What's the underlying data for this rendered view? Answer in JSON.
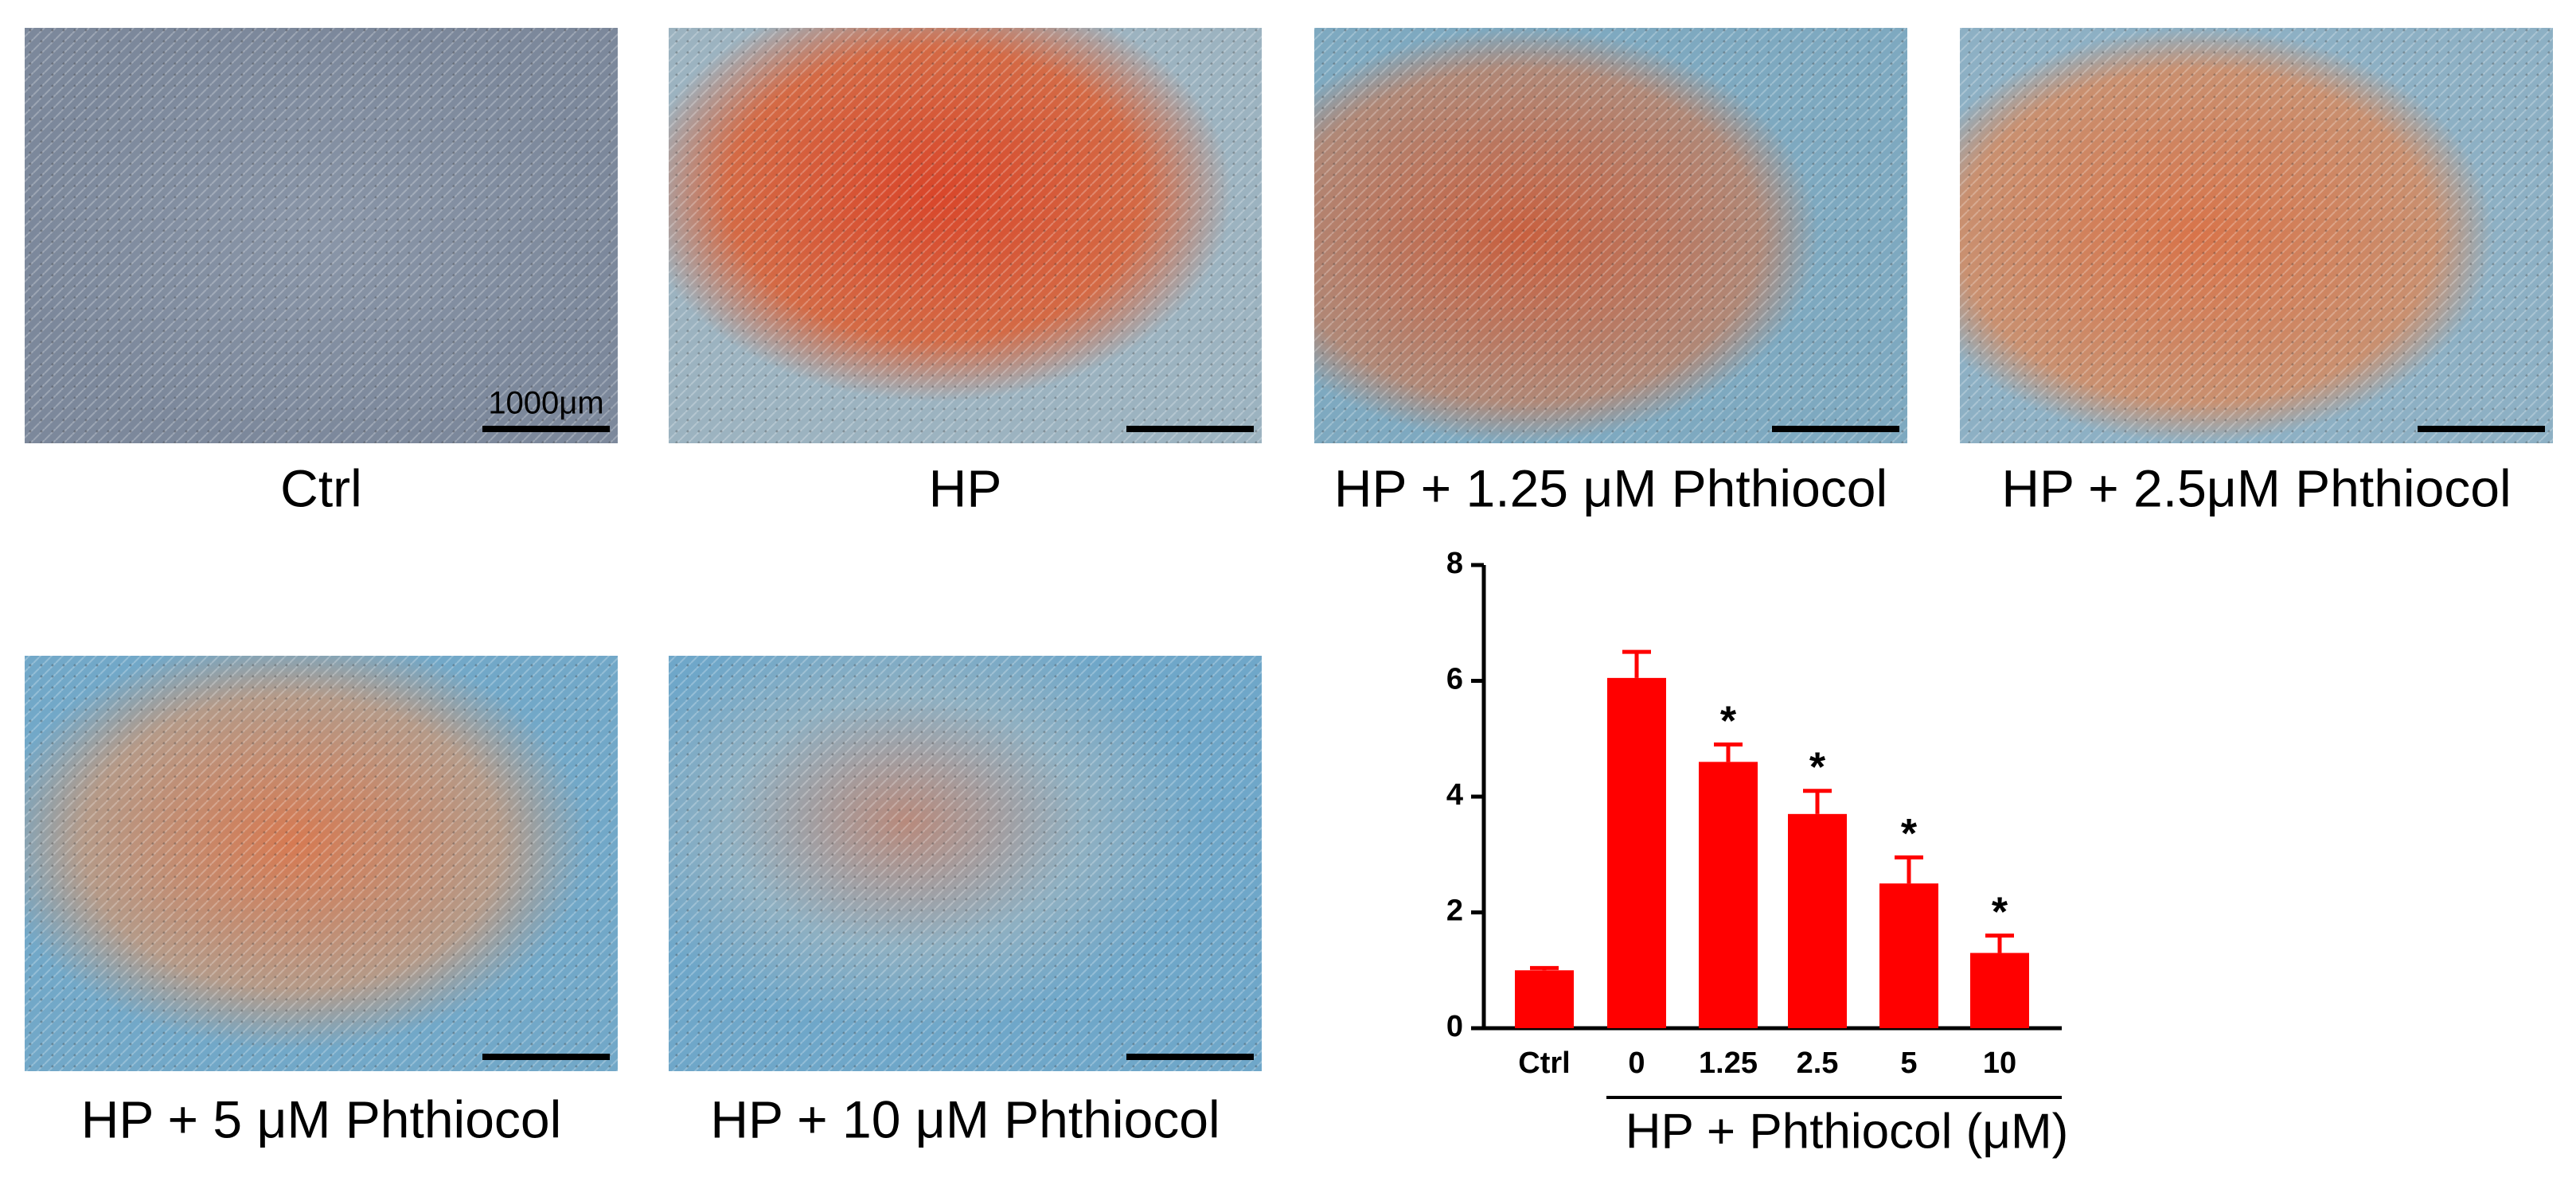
{
  "panels": [
    {
      "label": "Ctrl"
    },
    {
      "label": "HP"
    },
    {
      "label": "HP + 1.25 μM Phthiocol"
    },
    {
      "label": "HP + 2.5μM Phthiocol"
    },
    {
      "label": "HP + 5 μM Phthiocol"
    },
    {
      "label": "HP + 10 μM Phthiocol"
    }
  ],
  "scale_bar": "1000μm",
  "chart_data": {
    "type": "bar",
    "categories": [
      "Ctrl",
      "0",
      "1.25",
      "2.5",
      "5",
      "10"
    ],
    "values": [
      1.0,
      6.05,
      4.6,
      3.7,
      2.5,
      1.3
    ],
    "errors": [
      0.04,
      0.45,
      0.3,
      0.4,
      0.45,
      0.3
    ],
    "value_labels": [
      null,
      null,
      "*",
      "*",
      "*",
      "*"
    ],
    "group_label": "HP + Phthiocol (μM)",
    "color": "#ff0000",
    "ylim": [
      0,
      8
    ],
    "yticks": [
      0,
      2,
      4,
      6,
      8
    ]
  }
}
